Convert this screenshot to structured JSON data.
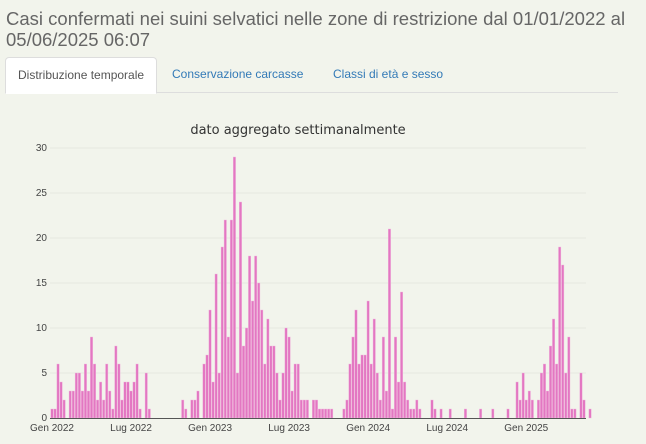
{
  "header": {
    "title_line1": "Casi confermati nei suini selvatici nelle zone di restrizione dal 01/01/2022 al",
    "title_line2": "05/06/2025 06:07"
  },
  "tabs": [
    {
      "label": "Distribuzione temporale",
      "active": true
    },
    {
      "label": "Conservazione carcasse",
      "active": false
    },
    {
      "label": "Classi di età e sesso",
      "active": false
    }
  ],
  "colors": {
    "bar": "#e377c2",
    "tab_link": "#337ab7"
  },
  "chart_data": {
    "type": "bar",
    "title": "dato aggregato settimanalmente",
    "x_unit": "week",
    "x_start": "Gen 2022",
    "ylim": [
      0,
      30
    ],
    "yticks": [
      "0",
      "5",
      "10",
      "15",
      "20",
      "25",
      "30"
    ],
    "xticks": [
      {
        "label": "Gen 2022",
        "week": 0
      },
      {
        "label": "Lug 2022",
        "week": 26
      },
      {
        "label": "Gen 2023",
        "week": 52
      },
      {
        "label": "Lug 2023",
        "week": 78
      },
      {
        "label": "Gen 2024",
        "week": 104
      },
      {
        "label": "Lug 2024",
        "week": 130
      },
      {
        "label": "Gen 2025",
        "week": 156
      }
    ],
    "grid": true,
    "values": [
      1,
      1,
      6,
      4,
      2,
      0,
      3,
      3,
      5,
      5,
      3,
      6,
      3,
      9,
      6,
      2,
      4,
      2,
      6,
      3,
      1,
      8,
      6,
      2,
      4,
      4,
      3,
      4,
      6,
      1,
      0,
      5,
      1,
      0,
      0,
      0,
      0,
      0,
      0,
      0,
      0,
      0,
      0,
      2,
      1,
      0,
      2,
      2,
      3,
      0,
      6,
      7,
      12,
      4,
      16,
      5,
      19,
      22,
      9,
      22,
      29,
      5,
      24,
      8,
      10,
      18,
      13,
      18,
      15,
      12,
      6,
      11,
      8,
      8,
      5,
      2,
      5,
      10,
      9,
      3,
      6,
      6,
      2,
      2,
      2,
      0,
      2,
      2,
      1,
      1,
      1,
      1,
      1,
      0,
      0,
      0,
      1,
      2,
      6,
      9,
      12,
      6,
      7,
      7,
      13,
      6,
      11,
      5,
      2,
      9,
      3,
      21,
      1,
      9,
      4,
      14,
      4,
      2,
      1,
      1,
      2,
      1,
      0,
      0,
      0,
      2,
      1,
      0,
      1,
      0,
      0,
      1,
      0,
      0,
      0,
      0,
      1,
      0,
      0,
      0,
      0,
      1,
      0,
      0,
      0,
      1,
      0,
      0,
      0,
      0,
      1,
      0,
      0,
      4,
      2,
      5,
      2,
      3,
      2,
      0,
      2,
      5,
      6,
      3,
      8,
      11,
      6,
      19,
      17,
      5,
      9,
      1,
      1,
      0,
      5,
      2,
      0,
      1
    ]
  }
}
